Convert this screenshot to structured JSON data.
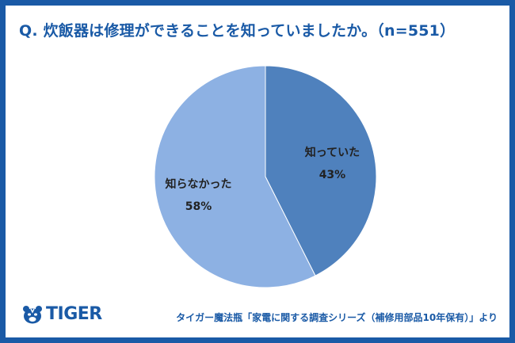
{
  "colors": {
    "frame": "#1a5aa6",
    "title": "#1a5aa6",
    "slice_knew": "#4f81bd",
    "slice_didnt_know": "#8db1e3"
  },
  "logo": {
    "text": "TIGER",
    "icon": "tiger-face-icon"
  },
  "footer": {
    "text": "タイガー魔法瓶「家電に関する調査シリーズ（補修用部品10年保有）」より"
  },
  "chart_data": {
    "type": "pie",
    "title": "Q. 炊飯器は修理ができることを知っていましたか。（n=551）",
    "slices": [
      {
        "label": "知っていた",
        "value": 43,
        "display": "43%",
        "color": "#4f81bd"
      },
      {
        "label": "知らなかった",
        "value": 58,
        "display": "58%",
        "color": "#8db1e3"
      }
    ],
    "start_angle_deg": 0,
    "direction": "clockwise",
    "legend": "none"
  }
}
